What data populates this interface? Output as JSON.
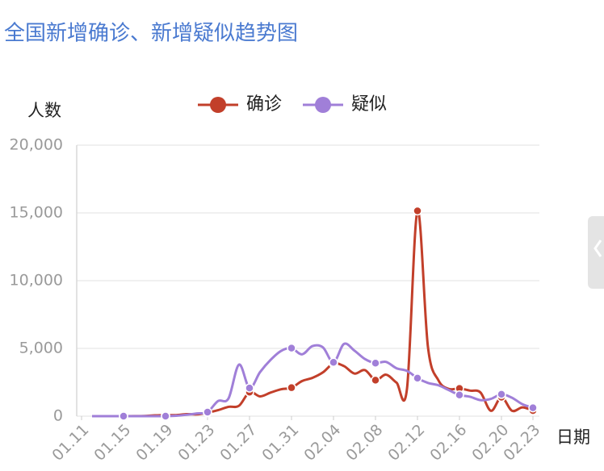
{
  "chart_data": {
    "type": "line",
    "title": "全国新增确诊、新增疑似趋势图",
    "y_label": "人数",
    "x_label": "日期",
    "categories": [
      "01.11",
      null,
      null,
      null,
      "01.15",
      null,
      null,
      null,
      "01.19",
      null,
      null,
      null,
      "01.23",
      null,
      null,
      null,
      "01.27",
      null,
      null,
      null,
      "01.31",
      null,
      null,
      null,
      "02.04",
      null,
      null,
      null,
      "02.08",
      null,
      null,
      null,
      "02.12",
      null,
      null,
      null,
      "02.16",
      null,
      null,
      null,
      "02.20",
      null,
      null,
      "02.23"
    ],
    "series": [
      {
        "name": "确诊",
        "color": "#c23f2a",
        "values": [
          null,
          0,
          0,
          0,
          0,
          4,
          17,
          59,
          77,
          77,
          149,
          131,
          259,
          444,
          688,
          769,
          1771,
          1459,
          1737,
          1982,
          2102,
          2590,
          2829,
          3235,
          3887,
          3694,
          3143,
          3399,
          2656,
          3062,
          2478,
          2015,
          15152,
          5090,
          2641,
          2009,
          2048,
          1886,
          1749,
          394,
          1400,
          397,
          648,
          409
        ]
      },
      {
        "name": "疑似",
        "color": "#a07fd8",
        "values": [
          null,
          0,
          0,
          0,
          0,
          0,
          0,
          0,
          0,
          27,
          100,
          200,
          300,
          1118,
          1309,
          3806,
          2077,
          3248,
          4148,
          4812,
          5019,
          4562,
          5173,
          5072,
          3971,
          5328,
          4833,
          4214,
          3916,
          4008,
          3536,
          3342,
          2807,
          2450,
          2277,
          1918,
          1563,
          1432,
          1185,
          1277,
          1614,
          1361,
          882,
          620
        ]
      }
    ],
    "ylim": [
      0,
      20000
    ],
    "yticks": [
      0,
      {
        "value": 5000,
        "label": "5,000"
      },
      {
        "value": 10000,
        "label": "10,000"
      },
      {
        "value": 15000,
        "label": "15,000"
      },
      {
        "value": 20000,
        "label": "20,000"
      }
    ],
    "grid": true,
    "legend": "top"
  }
}
